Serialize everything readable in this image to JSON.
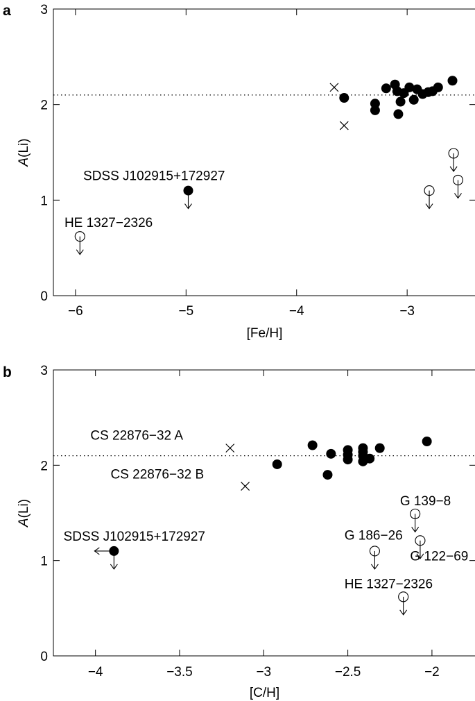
{
  "chart_data": [
    {
      "panel_label": "a",
      "type": "scatter",
      "xlabel": "[Fe/H]",
      "ylabel_italic": "A",
      "ylabel_rest": "(Li)",
      "xlim": [
        -6.2,
        -2.38
      ],
      "ylim": [
        0,
        3
      ],
      "x_ticks": [
        -6,
        -5,
        -4,
        -3
      ],
      "x_tick_labels": [
        "−6",
        "−5",
        "−4",
        "−3"
      ],
      "y_ticks": [
        0,
        1,
        2,
        3
      ],
      "y_tick_labels": [
        "0",
        "1",
        "2",
        "3"
      ],
      "reference_line_y": 2.1,
      "filled_points": [
        {
          "x": -3.57,
          "y": 2.07
        },
        {
          "x": -3.29,
          "y": 2.01
        },
        {
          "x": -3.29,
          "y": 1.94
        },
        {
          "x": -3.19,
          "y": 2.17
        },
        {
          "x": -3.11,
          "y": 2.21
        },
        {
          "x": -3.09,
          "y": 2.14
        },
        {
          "x": -3.06,
          "y": 2.03
        },
        {
          "x": -3.08,
          "y": 1.9
        },
        {
          "x": -3.03,
          "y": 2.12
        },
        {
          "x": -2.98,
          "y": 2.18
        },
        {
          "x": -2.94,
          "y": 2.05
        },
        {
          "x": -2.91,
          "y": 2.16
        },
        {
          "x": -2.86,
          "y": 2.11
        },
        {
          "x": -2.81,
          "y": 2.13
        },
        {
          "x": -2.77,
          "y": 2.14
        },
        {
          "x": -2.72,
          "y": 2.18
        },
        {
          "x": -2.59,
          "y": 2.25
        }
      ],
      "crosses": [
        {
          "x": -3.66,
          "y": 2.18
        },
        {
          "x": -3.57,
          "y": 1.78
        }
      ],
      "upper_limits_open": [
        {
          "x": -5.96,
          "y": 0.62
        },
        {
          "x": -2.8,
          "y": 1.1
        },
        {
          "x": -2.58,
          "y": 1.49
        },
        {
          "x": -2.54,
          "y": 1.21
        }
      ],
      "upper_limits_filled": [
        {
          "x": -4.98,
          "y": 1.1
        }
      ],
      "left_limits": [],
      "annotations": [
        {
          "text": "SDSS J102915+172927",
          "x": -5.93,
          "y": 1.21
        },
        {
          "text": "HE 1327−2326",
          "x": -6.1,
          "y": 0.72
        }
      ]
    },
    {
      "panel_label": "b",
      "type": "scatter",
      "xlabel": "[C/H]",
      "ylabel_italic": "A",
      "ylabel_rest": "(Li)",
      "xlim": [
        -4.25,
        -1.74
      ],
      "ylim": [
        0,
        3
      ],
      "x_ticks": [
        -4,
        -3.5,
        -3,
        -2.5,
        -2
      ],
      "x_tick_labels": [
        "−4",
        "−3.5",
        "−3",
        "−2.5",
        "−2"
      ],
      "y_ticks": [
        0,
        1,
        2,
        3
      ],
      "y_tick_labels": [
        "0",
        "1",
        "2",
        "3"
      ],
      "reference_line_y": 2.1,
      "filled_points": [
        {
          "x": -2.92,
          "y": 2.01
        },
        {
          "x": -2.71,
          "y": 2.21
        },
        {
          "x": -2.62,
          "y": 1.9
        },
        {
          "x": -2.6,
          "y": 2.12
        },
        {
          "x": -2.5,
          "y": 2.16
        },
        {
          "x": -2.5,
          "y": 2.11
        },
        {
          "x": -2.5,
          "y": 2.06
        },
        {
          "x": -2.41,
          "y": 2.18
        },
        {
          "x": -2.41,
          "y": 2.14
        },
        {
          "x": -2.41,
          "y": 2.1
        },
        {
          "x": -2.41,
          "y": 2.04
        },
        {
          "x": -2.37,
          "y": 2.07
        },
        {
          "x": -2.31,
          "y": 2.18
        },
        {
          "x": -2.03,
          "y": 2.25
        }
      ],
      "crosses": [
        {
          "x": -3.2,
          "y": 2.18
        },
        {
          "x": -3.11,
          "y": 1.78
        }
      ],
      "upper_limits_open": [
        {
          "x": -2.34,
          "y": 1.1
        },
        {
          "x": -2.1,
          "y": 1.49
        },
        {
          "x": -2.07,
          "y": 1.21
        },
        {
          "x": -2.17,
          "y": 0.62
        }
      ],
      "upper_limits_filled": [
        {
          "x": -3.89,
          "y": 1.1
        }
      ],
      "left_limits": [
        {
          "x": -3.89,
          "y": 1.1
        }
      ],
      "annotations": [
        {
          "text": "CS 22876−32 A",
          "x": -4.03,
          "y": 2.27
        },
        {
          "text": "CS 22876−32 B",
          "x": -3.91,
          "y": 1.86
        },
        {
          "text": "SDSS J102915+172927",
          "x": -4.19,
          "y": 1.21
        },
        {
          "text": "G 139−8",
          "x": -2.19,
          "y": 1.58
        },
        {
          "text": "G 186−26",
          "x": -2.52,
          "y": 1.22
        },
        {
          "text": "G 122−69",
          "x": -2.13,
          "y": 1.0
        },
        {
          "text": "HE 1327−2326",
          "x": -2.52,
          "y": 0.71
        }
      ]
    }
  ]
}
